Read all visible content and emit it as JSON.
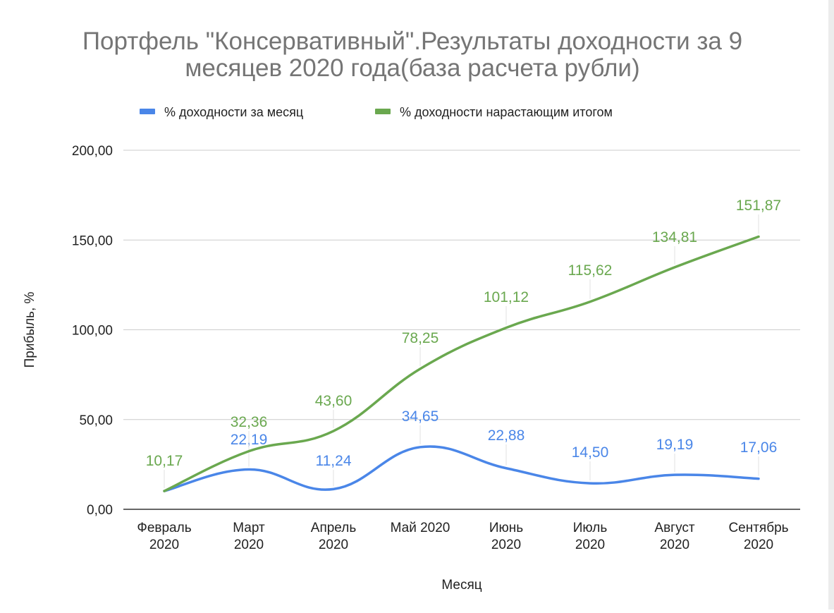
{
  "colors": {
    "series_monthly": "#4a86e8",
    "series_cumulative": "#6aa84f",
    "title": "#757575",
    "axis_text": "#222222",
    "grid": "#cccccc",
    "baseline": "#333333"
  },
  "chart_data": {
    "type": "line",
    "title_lines": [
      "Портфель \"Консервативный\".Результаты доходности за 9",
      "месяцев 2020 года(база расчета рубли)"
    ],
    "xlabel": "Месяц",
    "ylabel": "Прибыль, %",
    "ylim": [
      0,
      200
    ],
    "yticks": [
      "0,00",
      "50,00",
      "100,00",
      "150,00",
      "200,00"
    ],
    "grid": true,
    "legend_position": "top",
    "categories": [
      [
        "Февраль",
        "2020"
      ],
      [
        "Март",
        "2020"
      ],
      [
        "Апрель",
        "2020"
      ],
      [
        "Май 2020"
      ],
      [
        "Июнь",
        "2020"
      ],
      [
        "Июль",
        "2020"
      ],
      [
        "Август",
        "2020"
      ],
      [
        "Сентябрь",
        "2020"
      ]
    ],
    "series": [
      {
        "name": "% доходности за месяц",
        "color": "#4a86e8",
        "values": [
          10.17,
          22.19,
          11.24,
          34.65,
          22.88,
          14.5,
          19.19,
          17.06
        ],
        "labels": [
          "",
          "22,19",
          "11,24",
          "34,65",
          "22,88",
          "14,50",
          "19,19",
          "17,06"
        ]
      },
      {
        "name": "% доходности нарастающим итогом",
        "color": "#6aa84f",
        "values": [
          10.17,
          32.36,
          43.6,
          78.25,
          101.12,
          115.62,
          134.81,
          151.87
        ],
        "labels": [
          "10,17",
          "32,36",
          "43,60",
          "78,25",
          "101,12",
          "115,62",
          "134,81",
          "151,87"
        ]
      }
    ]
  }
}
